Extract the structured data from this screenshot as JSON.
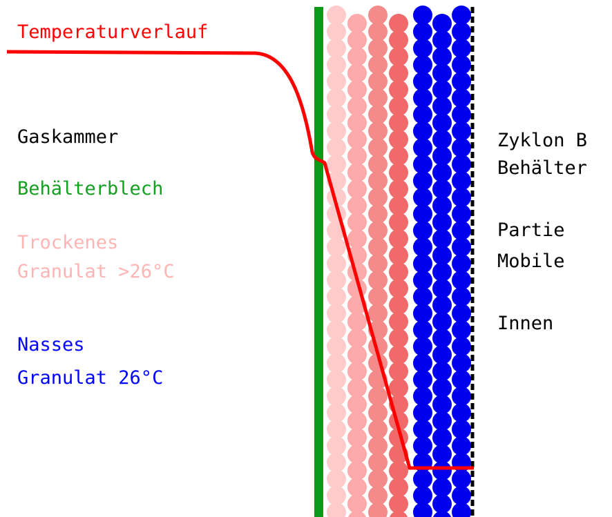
{
  "title": "Temperaturverlauf",
  "left_labels": {
    "gas_chamber": "Gaskammer",
    "sheet": "Behälterblech",
    "dry": [
      "Trockenes",
      "Granulat >26°C"
    ],
    "wet": [
      "Nasses",
      "Granulat 26°C"
    ]
  },
  "right_labels": {
    "container": [
      "Zyklon B",
      "Behälter"
    ],
    "mobile": [
      "Partie",
      "Mobile"
    ],
    "inside": "Innen"
  }
}
